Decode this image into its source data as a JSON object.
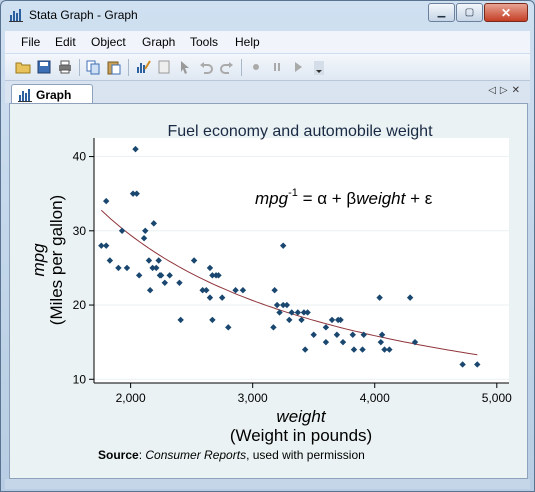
{
  "window": {
    "title": "Stata Graph - Graph"
  },
  "menu": [
    "File",
    "Edit",
    "Object",
    "Graph",
    "Tools",
    "Help"
  ],
  "toolbar": {
    "icons": [
      "open-icon",
      "save-icon",
      "print-icon",
      "copy-icon",
      "paste-icon",
      "graph-editor-icon",
      "recorder-icon",
      "pointer-icon",
      "undo-icon",
      "redo-icon",
      "record-icon",
      "pause-icon",
      "play-icon",
      "dropdown-icon"
    ]
  },
  "tab": {
    "label": "Graph"
  },
  "chart_data": {
    "type": "scatter",
    "title": "Fuel economy and automobile weight",
    "xlabel_main": "weight",
    "xlabel_sub": "(Weight in pounds)",
    "ylabel_main": "mpg",
    "ylabel_sub": "(Miles per gallon)",
    "equation": {
      "lhs": "mpg",
      "sup": "-1",
      "rhs_a": " = α + β",
      "var": "weight",
      "rhs_b": " + ε"
    },
    "note": {
      "bold": "Source",
      "colon": ": ",
      "italic": "Consumer Reports",
      "rest": ", used with permission"
    },
    "xlim": [
      1700,
      5100
    ],
    "ylim": [
      9.5,
      42.5
    ],
    "xticks": [
      2000,
      3000,
      4000,
      5000
    ],
    "xtick_labels": [
      "2,000",
      "3,000",
      "4,000",
      "5,000"
    ],
    "yticks": [
      10,
      20,
      30,
      40
    ],
    "ytick_labels": [
      "10",
      "20",
      "30",
      "40"
    ],
    "colors": {
      "marker": "#1a476f",
      "fit": "#90353b"
    },
    "points": [
      [
        1760,
        28
      ],
      [
        1800,
        34
      ],
      [
        1800,
        28
      ],
      [
        1830,
        26
      ],
      [
        1900,
        25
      ],
      [
        1930,
        30
      ],
      [
        1970,
        25
      ],
      [
        2020,
        35
      ],
      [
        2050,
        35
      ],
      [
        2040,
        41
      ],
      [
        2070,
        24
      ],
      [
        2110,
        29
      ],
      [
        2120,
        30
      ],
      [
        2150,
        26
      ],
      [
        2160,
        22
      ],
      [
        2180,
        25
      ],
      [
        2190,
        31
      ],
      [
        2210,
        25
      ],
      [
        2230,
        26
      ],
      [
        2240,
        24
      ],
      [
        2250,
        24
      ],
      [
        2280,
        23
      ],
      [
        2320,
        24
      ],
      [
        2400,
        23
      ],
      [
        2410,
        18
      ],
      [
        2520,
        26
      ],
      [
        2590,
        22
      ],
      [
        2620,
        22
      ],
      [
        2650,
        21
      ],
      [
        2650,
        25
      ],
      [
        2670,
        24
      ],
      [
        2670,
        18
      ],
      [
        2700,
        24
      ],
      [
        2720,
        24
      ],
      [
        2750,
        21
      ],
      [
        2800,
        17
      ],
      [
        2860,
        22
      ],
      [
        2920,
        22
      ],
      [
        3170,
        17
      ],
      [
        3180,
        22
      ],
      [
        3200,
        20
      ],
      [
        3220,
        19
      ],
      [
        3250,
        20
      ],
      [
        3250,
        28
      ],
      [
        3280,
        20
      ],
      [
        3300,
        18
      ],
      [
        3320,
        19
      ],
      [
        3370,
        19
      ],
      [
        3400,
        18
      ],
      [
        3420,
        19
      ],
      [
        3430,
        14
      ],
      [
        3450,
        19
      ],
      [
        3500,
        16
      ],
      [
        3600,
        15
      ],
      [
        3600,
        17
      ],
      [
        3650,
        18
      ],
      [
        3690,
        16
      ],
      [
        3700,
        18
      ],
      [
        3720,
        18
      ],
      [
        3740,
        15
      ],
      [
        3820,
        16
      ],
      [
        3830,
        14
      ],
      [
        3900,
        14
      ],
      [
        3910,
        16
      ],
      [
        4040,
        21
      ],
      [
        4050,
        15
      ],
      [
        4060,
        16
      ],
      [
        4080,
        14
      ],
      [
        4120,
        14
      ],
      [
        4290,
        21
      ],
      [
        4330,
        15
      ],
      [
        4720,
        12
      ],
      [
        4840,
        12
      ]
    ],
    "fit_coefficients": {
      "alpha": 0.005,
      "beta": 1.45e-05
    }
  }
}
